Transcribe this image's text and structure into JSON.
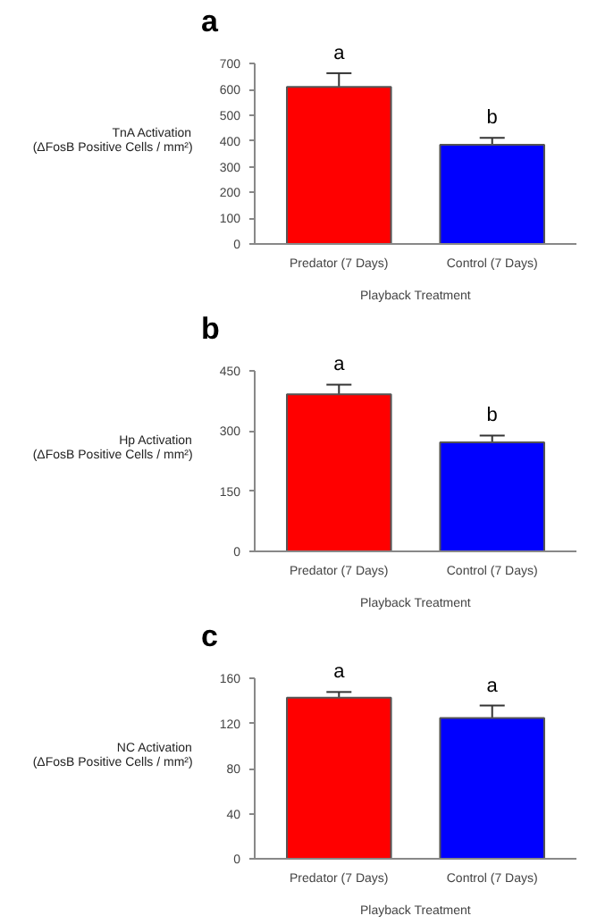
{
  "chart_data": [
    {
      "type": "bar",
      "title": "a",
      "ylabel": "TnA Activation\n(ΔFosB Positive Cells / mm²)",
      "xlabel": "Playback Treatment",
      "categories": [
        "Predator (7 Days)",
        "Control (7 Days)"
      ],
      "values": [
        610,
        385
      ],
      "errors": [
        53,
        27
      ],
      "colors": [
        "#ff0000",
        "#0000ff"
      ],
      "ylim": [
        0,
        700
      ],
      "yticks": [
        0,
        100,
        200,
        300,
        400,
        500,
        600,
        700
      ],
      "grid": false,
      "annotations": [
        "a",
        "b"
      ]
    },
    {
      "type": "bar",
      "title": "b",
      "ylabel": "Hp Activation\n(ΔFosB Positive Cells / mm²)",
      "xlabel": "Playback Treatment",
      "categories": [
        "Predator (7 Days)",
        "Control (7 Days)"
      ],
      "values": [
        392,
        272
      ],
      "errors": [
        24,
        17
      ],
      "colors": [
        "#ff0000",
        "#0000ff"
      ],
      "ylim": [
        0,
        450
      ],
      "yticks": [
        0,
        150,
        300,
        450
      ],
      "grid": false,
      "annotations": [
        "a",
        "b"
      ]
    },
    {
      "type": "bar",
      "title": "c",
      "ylabel": "NC Activation\n(ΔFosB Positive Cells / mm²)",
      "xlabel": "Playback Treatment",
      "categories": [
        "Predator (7 Days)",
        "Control (7 Days)"
      ],
      "values": [
        143,
        125
      ],
      "errors": [
        5,
        11
      ],
      "colors": [
        "#ff0000",
        "#0000ff"
      ],
      "ylim": [
        0,
        160
      ],
      "yticks": [
        0,
        40,
        80,
        120,
        160
      ],
      "grid": false,
      "annotations": [
        "a",
        "a"
      ]
    }
  ]
}
